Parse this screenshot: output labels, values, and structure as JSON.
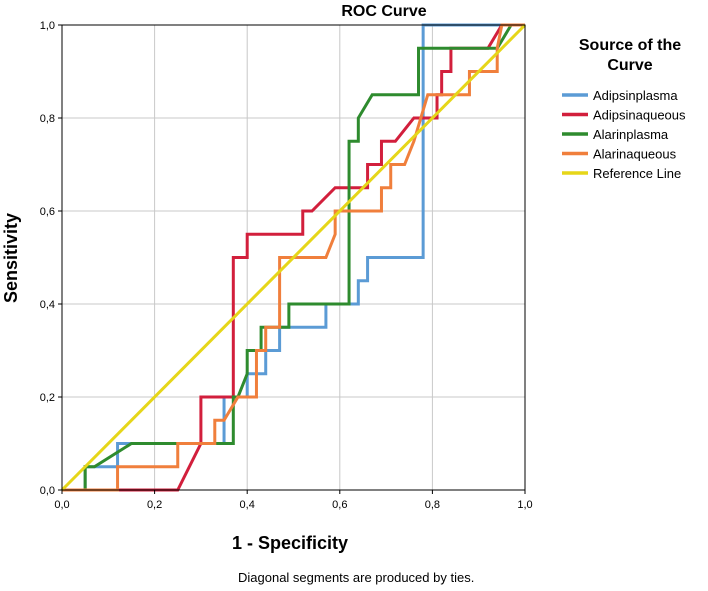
{
  "chart_data": {
    "type": "line",
    "title": "ROC Curve",
    "xlabel": "1 - Specificity",
    "ylabel": "Sensitivity",
    "xlim": [
      0,
      1
    ],
    "ylim": [
      0,
      1
    ],
    "grid": true,
    "legend_title_lines": [
      "Source of the",
      "Curve"
    ],
    "legend_position": "right",
    "x_ticks": [
      "0,0",
      "0,2",
      "0,4",
      "0,6",
      "0,8",
      "1,0"
    ],
    "y_ticks": [
      "0,0",
      "0,2",
      "0,4",
      "0,6",
      "0,8",
      "1,0"
    ],
    "footnote": "Diagonal segments are produced by ties.",
    "series": [
      {
        "name": "Adipsinplasma",
        "color": "#5b9bd5",
        "points": [
          [
            0,
            0
          ],
          [
            0.05,
            0
          ],
          [
            0.05,
            0.05
          ],
          [
            0.12,
            0.05
          ],
          [
            0.12,
            0.1
          ],
          [
            0.35,
            0.1
          ],
          [
            0.35,
            0.2
          ],
          [
            0.4,
            0.2
          ],
          [
            0.4,
            0.25
          ],
          [
            0.44,
            0.25
          ],
          [
            0.44,
            0.3
          ],
          [
            0.47,
            0.3
          ],
          [
            0.47,
            0.35
          ],
          [
            0.57,
            0.35
          ],
          [
            0.57,
            0.4
          ],
          [
            0.64,
            0.4
          ],
          [
            0.64,
            0.45
          ],
          [
            0.66,
            0.45
          ],
          [
            0.66,
            0.5
          ],
          [
            0.78,
            0.5
          ],
          [
            0.78,
            1.0
          ],
          [
            0.94,
            1.0
          ],
          [
            1,
            1
          ]
        ]
      },
      {
        "name": "Adipsinaqueous",
        "color": "#d21f3c",
        "points": [
          [
            0,
            0
          ],
          [
            0.25,
            0
          ],
          [
            0.3,
            0.1
          ],
          [
            0.3,
            0.2
          ],
          [
            0.37,
            0.2
          ],
          [
            0.37,
            0.5
          ],
          [
            0.4,
            0.5
          ],
          [
            0.4,
            0.55
          ],
          [
            0.52,
            0.55
          ],
          [
            0.52,
            0.6
          ],
          [
            0.54,
            0.6
          ],
          [
            0.59,
            0.65
          ],
          [
            0.66,
            0.65
          ],
          [
            0.66,
            0.7
          ],
          [
            0.69,
            0.7
          ],
          [
            0.69,
            0.75
          ],
          [
            0.72,
            0.75
          ],
          [
            0.76,
            0.8
          ],
          [
            0.81,
            0.8
          ],
          [
            0.81,
            0.85
          ],
          [
            0.82,
            0.85
          ],
          [
            0.82,
            0.9
          ],
          [
            0.84,
            0.9
          ],
          [
            0.84,
            0.95
          ],
          [
            0.92,
            0.95
          ],
          [
            0.95,
            1.0
          ],
          [
            1,
            1
          ]
        ]
      },
      {
        "name": "Alarinplasma",
        "color": "#2e8b2e",
        "points": [
          [
            0,
            0
          ],
          [
            0.05,
            0
          ],
          [
            0.05,
            0.05
          ],
          [
            0.07,
            0.05
          ],
          [
            0.15,
            0.1
          ],
          [
            0.3,
            0.1
          ],
          [
            0.3,
            0.1
          ],
          [
            0.37,
            0.1
          ],
          [
            0.37,
            0.2
          ],
          [
            0.38,
            0.2
          ],
          [
            0.4,
            0.25
          ],
          [
            0.4,
            0.3
          ],
          [
            0.43,
            0.3
          ],
          [
            0.43,
            0.35
          ],
          [
            0.49,
            0.35
          ],
          [
            0.49,
            0.4
          ],
          [
            0.62,
            0.4
          ],
          [
            0.62,
            0.75
          ],
          [
            0.64,
            0.75
          ],
          [
            0.64,
            0.8
          ],
          [
            0.67,
            0.85
          ],
          [
            0.77,
            0.85
          ],
          [
            0.77,
            0.95
          ],
          [
            0.94,
            0.95
          ],
          [
            0.97,
            1.0
          ],
          [
            1,
            1
          ]
        ]
      },
      {
        "name": "Alarinaqueous",
        "color": "#f07f3c",
        "points": [
          [
            0,
            0
          ],
          [
            0.12,
            0
          ],
          [
            0.12,
            0.05
          ],
          [
            0.25,
            0.05
          ],
          [
            0.25,
            0.1
          ],
          [
            0.33,
            0.1
          ],
          [
            0.33,
            0.15
          ],
          [
            0.35,
            0.15
          ],
          [
            0.38,
            0.2
          ],
          [
            0.42,
            0.2
          ],
          [
            0.42,
            0.3
          ],
          [
            0.44,
            0.3
          ],
          [
            0.44,
            0.35
          ],
          [
            0.47,
            0.35
          ],
          [
            0.47,
            0.5
          ],
          [
            0.57,
            0.5
          ],
          [
            0.59,
            0.55
          ],
          [
            0.59,
            0.6
          ],
          [
            0.69,
            0.6
          ],
          [
            0.69,
            0.65
          ],
          [
            0.71,
            0.65
          ],
          [
            0.71,
            0.7
          ],
          [
            0.74,
            0.7
          ],
          [
            0.76,
            0.75
          ],
          [
            0.79,
            0.85
          ],
          [
            0.88,
            0.85
          ],
          [
            0.88,
            0.9
          ],
          [
            0.94,
            0.9
          ],
          [
            0.94,
            0.95
          ],
          [
            0.95,
            1.0
          ],
          [
            1,
            1
          ]
        ]
      },
      {
        "name": "Reference Line",
        "color": "#e6d619",
        "points": [
          [
            0,
            0
          ],
          [
            1,
            1
          ]
        ]
      }
    ]
  }
}
